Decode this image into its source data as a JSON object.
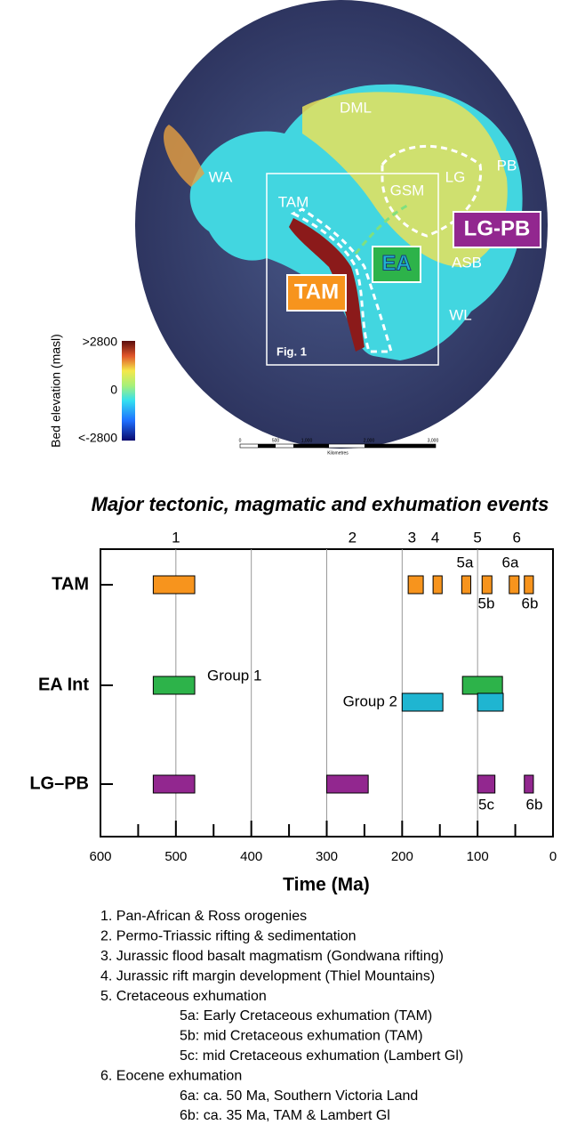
{
  "map": {
    "labels": [
      "DML",
      "PB",
      "WA",
      "LG",
      "GSM",
      "TAM",
      "LG-PB",
      "EA",
      "ASB",
      "TAM",
      "WL",
      "Fig. 1"
    ],
    "colorbar": {
      "title": "Bed elevation (masl)",
      "ticks": [
        ">2800",
        "0",
        "<-2800"
      ]
    },
    "scalebar": {
      "ticks": [
        "0",
        "500",
        "1,000",
        "2,000",
        "3,000"
      ],
      "unit": "Kilometres"
    }
  },
  "chart_data": {
    "type": "range",
    "title": "Major tectonic, magmatic and exhumation events",
    "x_label": "Time (Ma)",
    "xlim": [
      600,
      0
    ],
    "xticks": [
      600,
      500,
      400,
      300,
      200,
      100,
      0
    ],
    "xminorticks": [
      550,
      450,
      350,
      250,
      150,
      50
    ],
    "grid": true,
    "events": [
      {
        "label": "1",
        "x": 500
      },
      {
        "label": "2",
        "x": 266
      },
      {
        "label": "3",
        "x": 187
      },
      {
        "label": "4",
        "x": 156
      },
      {
        "label": "5",
        "x": 100
      },
      {
        "label": "6",
        "x": 48
      }
    ],
    "rows": [
      {
        "name": "TAM",
        "bars": [
          {
            "range": [
              530,
              475
            ],
            "color": "#f7941d"
          },
          {
            "range": [
              192,
              172
            ],
            "color": "#f7941d"
          },
          {
            "range": [
              159,
              147
            ],
            "color": "#f7941d"
          },
          {
            "range": [
              121,
              109
            ],
            "color": "#f7941d"
          },
          {
            "range": [
              94,
              81
            ],
            "color": "#f7941d"
          },
          {
            "range": [
              58,
              45
            ],
            "color": "#f7941d"
          },
          {
            "range": [
              38,
              26
            ],
            "color": "#f7941d"
          }
        ]
      },
      {
        "name": "EA Int",
        "bars": [
          {
            "range": [
              530,
              475
            ],
            "color": "#2db34a"
          },
          {
            "range": [
              120,
              67
            ],
            "color": "#2db34a"
          },
          {
            "range": [
              200,
              146
            ],
            "color": "#1fb5d1"
          },
          {
            "range": [
              100,
              66
            ],
            "color": "#1fb5d1"
          }
        ]
      },
      {
        "name": "LG–PB",
        "bars": [
          {
            "range": [
              530,
              475
            ],
            "color": "#92278f"
          },
          {
            "range": [
              300,
              245
            ],
            "color": "#92278f"
          },
          {
            "range": [
              100,
              77
            ],
            "color": "#92278f"
          },
          {
            "range": [
              38,
              26
            ],
            "color": "#92278f"
          }
        ]
      }
    ],
    "annotations": [
      "5a",
      "6a",
      "5b",
      "6b",
      "Group 1",
      "Group 2",
      "5c",
      "6b"
    ]
  },
  "legend": [
    {
      "text": "1. Pan-African & Ross orogenies"
    },
    {
      "text": "2. Permo-Triassic rifting & sedimentation"
    },
    {
      "text": "3. Jurassic flood basalt magmatism (Gondwana rifting)"
    },
    {
      "text": "4. Jurassic rift margin development (Thiel Mountains)"
    },
    {
      "text": "5. Cretaceous exhumation",
      "sub": [
        "5a: Early Cretaceous exhumation (TAM)",
        "5b: mid Cretaceous exhumation (TAM)",
        "5c: mid Cretaceous exhumation (Lambert Gl)"
      ]
    },
    {
      "text": "6. Eocene exhumation",
      "sub": [
        "6a: ca. 50 Ma, Southern Victoria Land",
        "6b: ca. 35 Ma, TAM & Lambert Gl"
      ]
    }
  ]
}
